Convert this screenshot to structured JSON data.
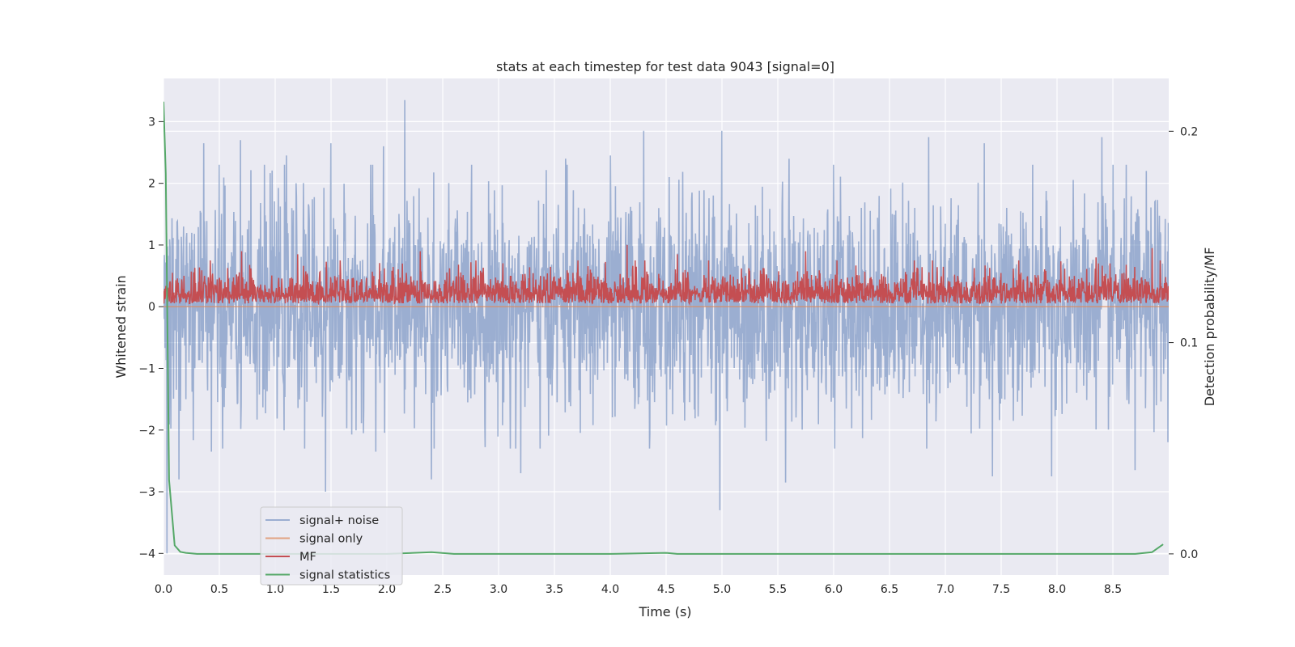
{
  "chart_data": {
    "type": "line",
    "title": "stats at each timestep for test data 9043 [signal=0]",
    "xlabel": "Time (s)",
    "ylabel": "Whitened strain",
    "ylabel_right": "Detection probability/MF",
    "xlim": [
      0.0,
      9.0
    ],
    "ylim": [
      -4.35,
      3.7
    ],
    "ylim_right": [
      -0.01,
      0.225
    ],
    "x_ticks": [
      "0.0",
      "0.5",
      "1.0",
      "1.5",
      "2.0",
      "2.5",
      "3.0",
      "3.5",
      "4.0",
      "4.5",
      "5.0",
      "5.5",
      "6.0",
      "6.5",
      "7.0",
      "7.5",
      "8.0",
      "8.5"
    ],
    "y_ticks": [
      "3",
      "2",
      "1",
      "0",
      "−1",
      "−2",
      "−3",
      "−4"
    ],
    "y_ticks_right": [
      "0.2",
      "0.1",
      "0.0"
    ],
    "grid": true,
    "legend_position": "lower-left",
    "colors": {
      "background": "#eaeaf2",
      "grid": "#ffffff",
      "signal_noise": "#4c72b0",
      "signal_only": "#dd8452",
      "mf": "#c44e52",
      "statistics": "#55a868"
    },
    "series": [
      {
        "name": "signal+ noise",
        "axis": "left",
        "description_of_values": "noise around 0, std ~0.9",
        "peaks": [
          {
            "x": 0.36,
            "y": 2.65
          },
          {
            "x": 0.69,
            "y": 2.7
          },
          {
            "x": 1.1,
            "y": 2.45
          },
          {
            "x": 1.5,
            "y": 2.65
          },
          {
            "x": 1.97,
            "y": 2.6
          },
          {
            "x": 2.16,
            "y": 3.35
          },
          {
            "x": 3.6,
            "y": 2.4
          },
          {
            "x": 4.0,
            "y": 2.45
          },
          {
            "x": 4.3,
            "y": 2.85
          },
          {
            "x": 5.0,
            "y": 2.85
          },
          {
            "x": 5.6,
            "y": 2.4
          },
          {
            "x": 6.0,
            "y": 2.3
          },
          {
            "x": 6.85,
            "y": 2.75
          },
          {
            "x": 7.35,
            "y": 2.65
          },
          {
            "x": 8.4,
            "y": 2.75
          },
          {
            "x": 8.8,
            "y": 2.2
          }
        ],
        "troughs": [
          {
            "x": 0.03,
            "y": -4.0
          },
          {
            "x": 0.14,
            "y": -2.8
          },
          {
            "x": 0.43,
            "y": -2.35
          },
          {
            "x": 1.45,
            "y": -3.0
          },
          {
            "x": 1.9,
            "y": -2.35
          },
          {
            "x": 2.4,
            "y": -2.8
          },
          {
            "x": 3.2,
            "y": -2.7
          },
          {
            "x": 4.35,
            "y": -2.3
          },
          {
            "x": 4.98,
            "y": -3.3
          },
          {
            "x": 5.57,
            "y": -2.85
          },
          {
            "x": 7.42,
            "y": -2.75
          },
          {
            "x": 7.95,
            "y": -2.75
          },
          {
            "x": 8.7,
            "y": -2.65
          }
        ]
      },
      {
        "name": "signal only",
        "axis": "left",
        "x": [
          0.0,
          9.0
        ],
        "y": [
          0.0,
          0.0
        ]
      },
      {
        "name": "MF",
        "axis": "left",
        "description_of_values": "values between 0 and ~1.0, typical ~0.3",
        "peaks": [
          {
            "x": 0.7,
            "y": 0.9
          },
          {
            "x": 1.2,
            "y": 0.85
          },
          {
            "x": 2.3,
            "y": 0.9
          },
          {
            "x": 4.15,
            "y": 1.0
          },
          {
            "x": 4.6,
            "y": 0.85
          },
          {
            "x": 5.75,
            "y": 0.9
          },
          {
            "x": 8.35,
            "y": 0.8
          },
          {
            "x": 8.85,
            "y": 0.95
          }
        ]
      },
      {
        "name": "signal statistics",
        "axis": "right",
        "x": [
          0.0,
          0.02,
          0.05,
          0.1,
          0.15,
          0.2,
          0.3,
          0.5,
          1.0,
          2.0,
          2.4,
          2.6,
          3.0,
          4.0,
          4.5,
          4.6,
          5.0,
          6.0,
          7.0,
          8.0,
          8.7,
          8.85,
          8.95
        ],
        "y": [
          0.214,
          0.18,
          0.035,
          0.004,
          0.001,
          0.0005,
          0.0,
          0.0,
          0.0,
          0.0,
          0.0008,
          0.0,
          0.0,
          0.0,
          0.0005,
          0.0,
          0.0,
          0.0,
          0.0,
          0.0,
          0.0,
          0.0008,
          0.0045
        ]
      }
    ]
  }
}
